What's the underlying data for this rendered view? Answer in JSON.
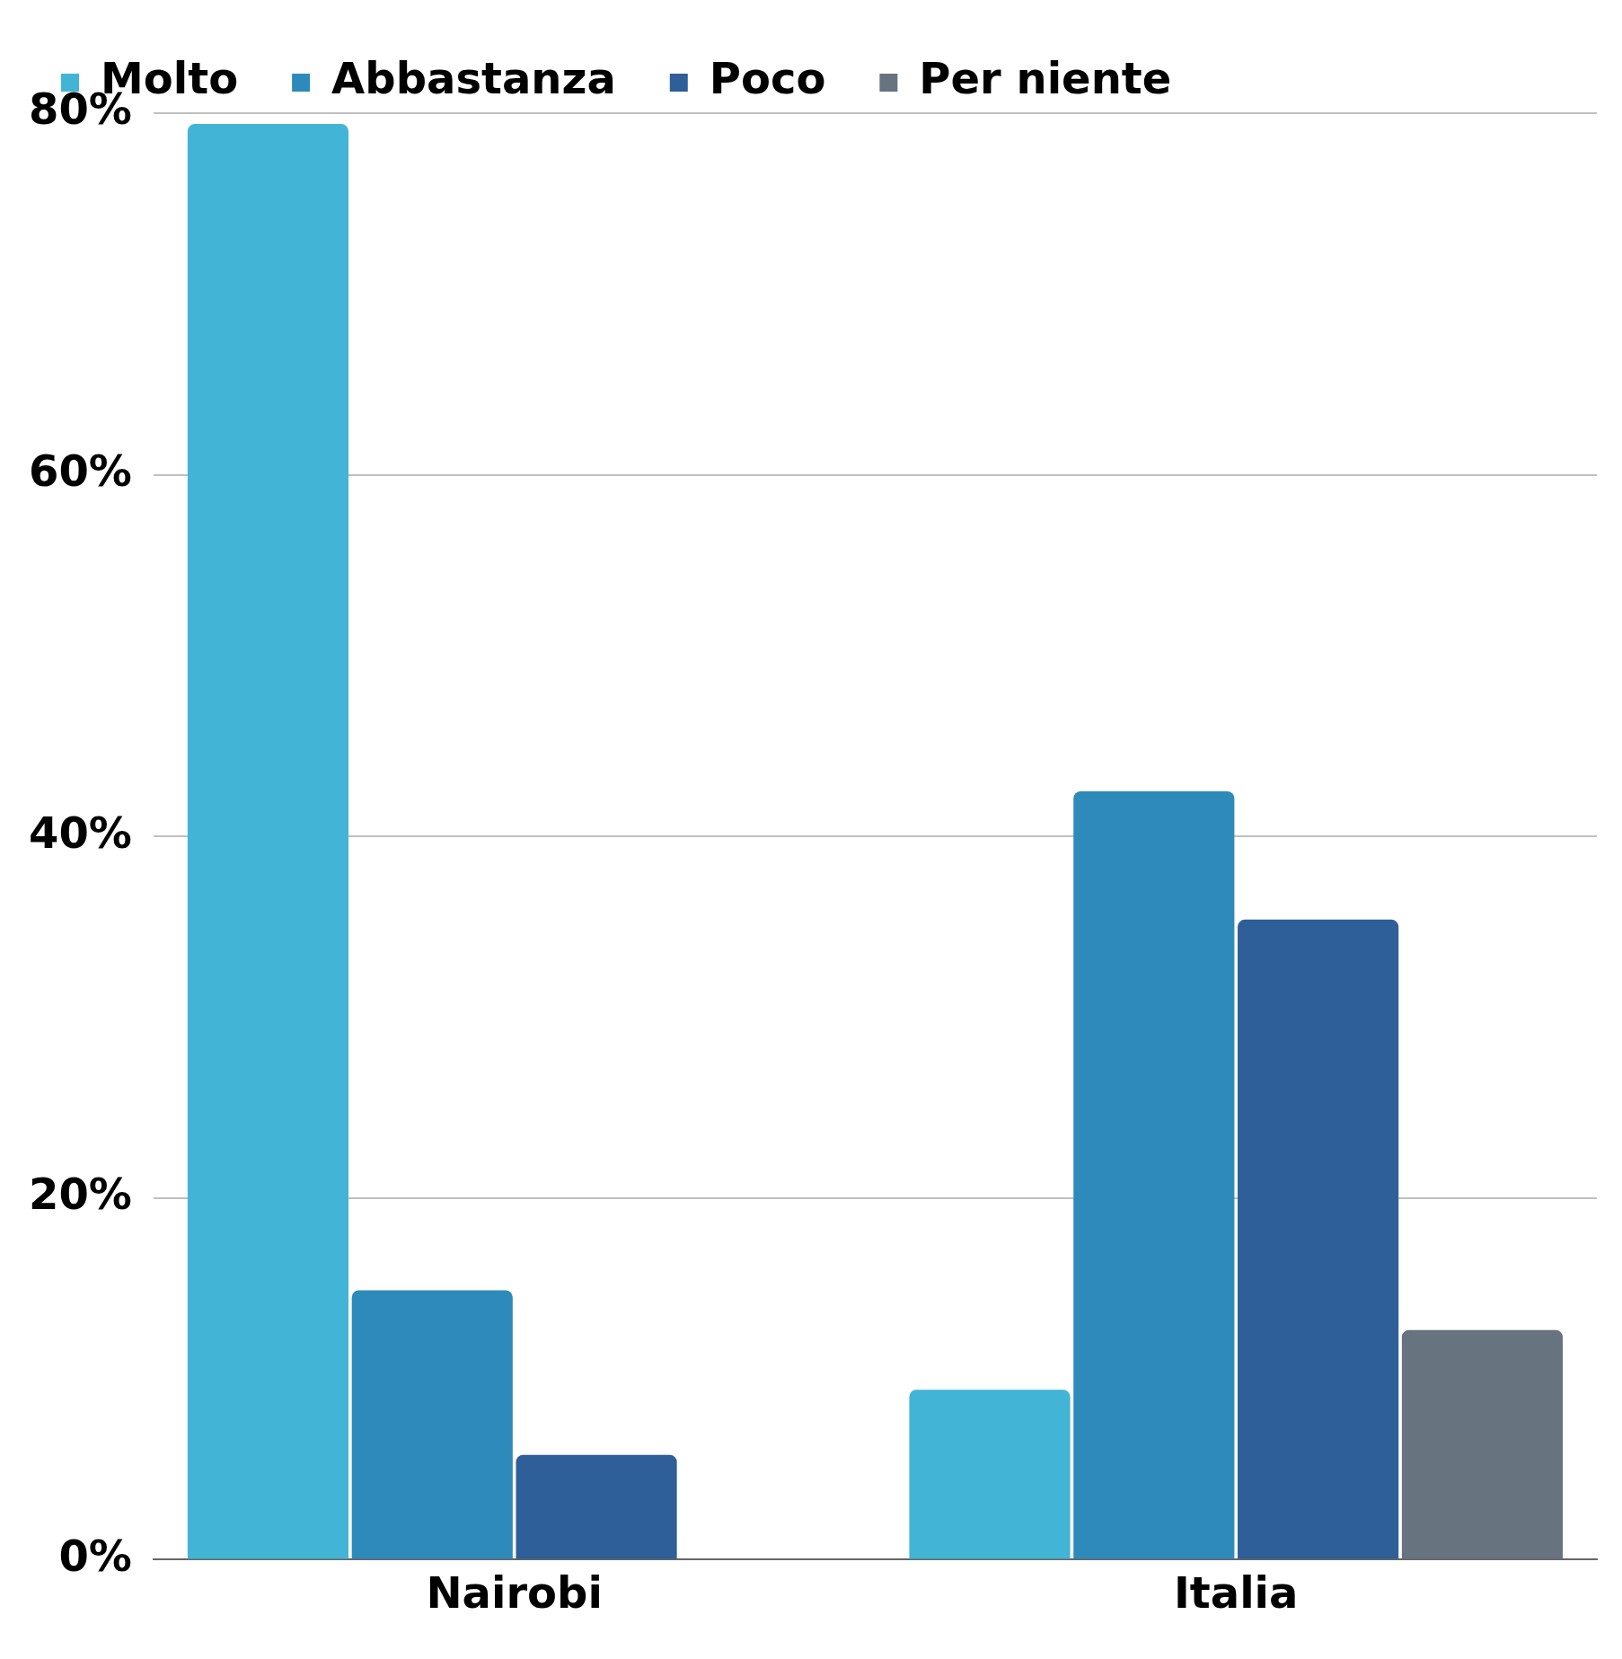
{
  "chart_data": {
    "type": "bar",
    "categories": [
      "Nairobi",
      "Italia"
    ],
    "series": [
      {
        "name": "Molto",
        "color": "#42b5d6",
        "values": [
          79.4,
          9.4
        ]
      },
      {
        "name": "Abbastanza",
        "color": "#2d8aba",
        "values": [
          14.9,
          42.5
        ]
      },
      {
        "name": "Poco",
        "color": "#2e5f98",
        "values": [
          5.8,
          35.4
        ]
      },
      {
        "name": "Per niente",
        "color": "#67737f",
        "values": [
          0,
          12.7
        ]
      }
    ],
    "ylim": [
      0,
      80
    ],
    "yticks": [
      {
        "value": 0,
        "label": "0%"
      },
      {
        "value": 20,
        "label": "20%"
      },
      {
        "value": 40,
        "label": "40%"
      },
      {
        "value": 60,
        "label": "60%"
      },
      {
        "value": 80,
        "label": "80%"
      }
    ],
    "grid": "y",
    "legend": "top"
  }
}
